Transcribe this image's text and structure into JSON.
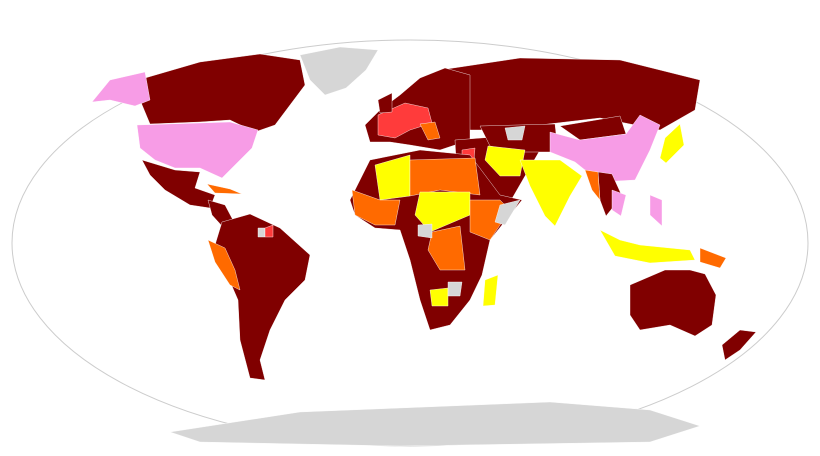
{
  "colors": {
    "dark": "#800000",
    "red": "#ff3b3b",
    "orange": "#ff6a00",
    "yellow": "#ffff00",
    "pink": "#f79ce6",
    "grey": "#d6d6d6",
    "ocean": "#ffffff",
    "frame": "#cccccc"
  },
  "regions": {
    "greenland": "grey",
    "canada": "dark",
    "alaska": "pink",
    "usa": "pink",
    "mexico": "dark",
    "central-america": "dark",
    "caribbean": "orange",
    "south-america": "dark",
    "peru": "orange",
    "suriname": "red",
    "guyana": "grey",
    "europe": "dark",
    "europe-central": "red",
    "balkans": "orange",
    "uk": "dark",
    "russia": "dark",
    "middle-east": "dark",
    "syria": "red",
    "central-asia": "dark",
    "central-asia-grey": "grey",
    "iran": "yellow",
    "mongolia": "dark",
    "china": "pink",
    "india": "yellow",
    "japan": "yellow",
    "southeast-asia": "dark",
    "myanmar": "orange",
    "vietnam": "pink",
    "philippines": "pink",
    "indonesia": "yellow",
    "papua": "orange",
    "australia": "dark",
    "new-zealand": "dark",
    "africa": "dark",
    "sahara": "yellow",
    "west-africa": "orange",
    "libya-egypt": "orange",
    "chad-sudan": "yellow",
    "ethiopia": "orange",
    "somalia": "grey",
    "drc": "orange",
    "central-africa-grey": "grey",
    "madagascar": "yellow",
    "botswana": "yellow",
    "zimbabwe-grey": "grey",
    "antarctica": "grey"
  }
}
